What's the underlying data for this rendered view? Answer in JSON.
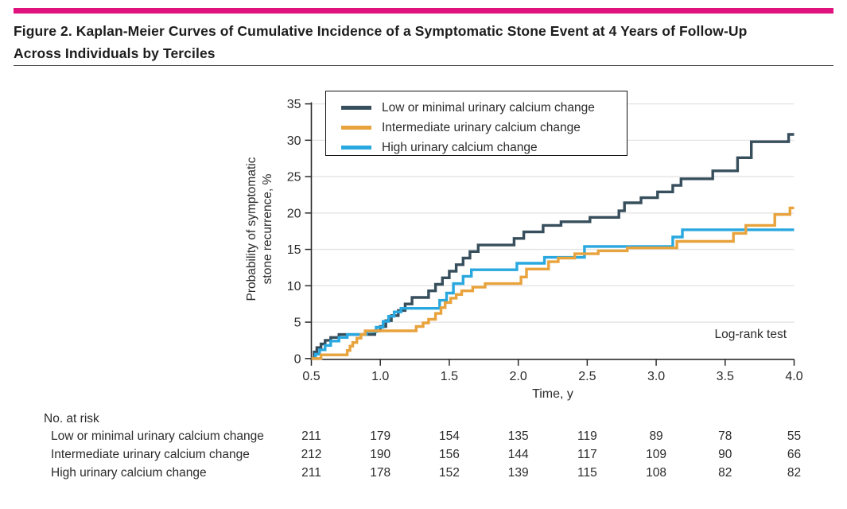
{
  "figure": {
    "accent_color": "#e0127e",
    "title": "Figure 2. Kaplan-Meier Curves of Cumulative Incidence of a Symptomatic Stone Event at 4 Years of Follow-Up Across Individuals by Terciles",
    "title_line1": "Figure 2. Kaplan-Meier Curves of Cumulative Incidence of a Symptomatic Stone Event at 4 Years of Follow-Up",
    "title_line2": "Across Individuals by Terciles"
  },
  "chart_data": {
    "type": "line",
    "subtype": "kaplan-meier-step",
    "xlabel": "Time, y",
    "ylabel_lines": [
      "Probability of symptomatic",
      "stone recurrence, %"
    ],
    "xlim": [
      0.5,
      4.0
    ],
    "ylim": [
      0,
      35
    ],
    "xticks": [
      0.5,
      1.0,
      1.5,
      2.0,
      2.5,
      3.0,
      3.5,
      4.0
    ],
    "xtick_labels": [
      "0.5",
      "1.0",
      "1.5",
      "2.0",
      "2.5",
      "3.0",
      "3.5",
      "4.0"
    ],
    "yticks": [
      0,
      5,
      10,
      15,
      20,
      25,
      30,
      35
    ],
    "grid": "horizontal-light",
    "legend_position": "inside-top-left",
    "annotation": "Log-rank test",
    "axis_color": "#2b2b2b",
    "grid_color": "#e4e4e4",
    "series": [
      {
        "name": "Low or minimal urinary calcium change",
        "color": "#374e5c",
        "points": [
          [
            0.5,
            0
          ],
          [
            0.52,
            0.9
          ],
          [
            0.54,
            1.5
          ],
          [
            0.57,
            2.0
          ],
          [
            0.6,
            2.5
          ],
          [
            0.64,
            2.9
          ],
          [
            0.7,
            3.3
          ],
          [
            0.96,
            3.8
          ],
          [
            1.0,
            4.4
          ],
          [
            1.04,
            5.2
          ],
          [
            1.08,
            5.9
          ],
          [
            1.13,
            6.6
          ],
          [
            1.18,
            7.5
          ],
          [
            1.23,
            8.4
          ],
          [
            1.35,
            9.3
          ],
          [
            1.4,
            10.2
          ],
          [
            1.45,
            11.1
          ],
          [
            1.5,
            12.0
          ],
          [
            1.55,
            12.9
          ],
          [
            1.6,
            13.8
          ],
          [
            1.65,
            14.7
          ],
          [
            1.71,
            15.6
          ],
          [
            1.97,
            16.5
          ],
          [
            2.04,
            17.4
          ],
          [
            2.18,
            18.3
          ],
          [
            2.31,
            18.8
          ],
          [
            2.52,
            19.4
          ],
          [
            2.73,
            20.3
          ],
          [
            2.77,
            21.4
          ],
          [
            2.89,
            22.1
          ],
          [
            3.01,
            22.9
          ],
          [
            3.12,
            23.8
          ],
          [
            3.18,
            24.7
          ],
          [
            3.41,
            25.8
          ],
          [
            3.59,
            27.6
          ],
          [
            3.69,
            29.8
          ],
          [
            3.96,
            30.8
          ],
          [
            4.0,
            30.8
          ]
        ]
      },
      {
        "name": "Intermediate urinary calcium change",
        "color": "#e8a33d",
        "points": [
          [
            0.5,
            0
          ],
          [
            0.57,
            0.5
          ],
          [
            0.76,
            1.1
          ],
          [
            0.78,
            1.7
          ],
          [
            0.8,
            2.2
          ],
          [
            0.83,
            2.8
          ],
          [
            0.86,
            3.3
          ],
          [
            0.89,
            3.8
          ],
          [
            1.26,
            4.4
          ],
          [
            1.31,
            4.9
          ],
          [
            1.35,
            5.4
          ],
          [
            1.4,
            6.2
          ],
          [
            1.44,
            7.0
          ],
          [
            1.47,
            7.7
          ],
          [
            1.51,
            8.3
          ],
          [
            1.55,
            8.8
          ],
          [
            1.59,
            9.3
          ],
          [
            1.67,
            9.8
          ],
          [
            1.76,
            10.3
          ],
          [
            2.02,
            11.2
          ],
          [
            2.06,
            12.3
          ],
          [
            2.22,
            13.3
          ],
          [
            2.29,
            13.8
          ],
          [
            2.41,
            14.4
          ],
          [
            2.58,
            14.8
          ],
          [
            2.79,
            15.2
          ],
          [
            3.15,
            16.1
          ],
          [
            3.56,
            17.2
          ],
          [
            3.65,
            18.3
          ],
          [
            3.86,
            19.8
          ],
          [
            3.97,
            20.7
          ],
          [
            4.0,
            20.7
          ]
        ]
      },
      {
        "name": "High urinary calcium change",
        "color": "#29a8df",
        "points": [
          [
            0.5,
            0
          ],
          [
            0.53,
            0.6
          ],
          [
            0.56,
            1.2
          ],
          [
            0.6,
            1.8
          ],
          [
            0.64,
            2.4
          ],
          [
            0.7,
            2.9
          ],
          [
            0.76,
            3.3
          ],
          [
            0.9,
            3.7
          ],
          [
            0.97,
            4.3
          ],
          [
            1.02,
            5.1
          ],
          [
            1.06,
            5.8
          ],
          [
            1.1,
            6.4
          ],
          [
            1.15,
            6.9
          ],
          [
            1.43,
            8.0
          ],
          [
            1.48,
            9.0
          ],
          [
            1.53,
            10.3
          ],
          [
            1.6,
            11.3
          ],
          [
            1.66,
            12.2
          ],
          [
            1.99,
            13.1
          ],
          [
            2.19,
            13.9
          ],
          [
            2.48,
            15.4
          ],
          [
            3.12,
            16.7
          ],
          [
            3.19,
            17.7
          ],
          [
            4.0,
            17.7
          ]
        ]
      }
    ]
  },
  "risk_table": {
    "header": "No. at risk",
    "rows": [
      {
        "label": "Low or minimal urinary calcium change",
        "values": [
          "211",
          "179",
          "154",
          "135",
          "119",
          "89",
          "78",
          "55"
        ]
      },
      {
        "label": "Intermediate urinary calcium change",
        "values": [
          "212",
          "190",
          "156",
          "144",
          "117",
          "109",
          "90",
          "66"
        ]
      },
      {
        "label": "High urinary calcium change",
        "values": [
          "211",
          "178",
          "152",
          "139",
          "115",
          "108",
          "82",
          "82"
        ]
      }
    ]
  }
}
